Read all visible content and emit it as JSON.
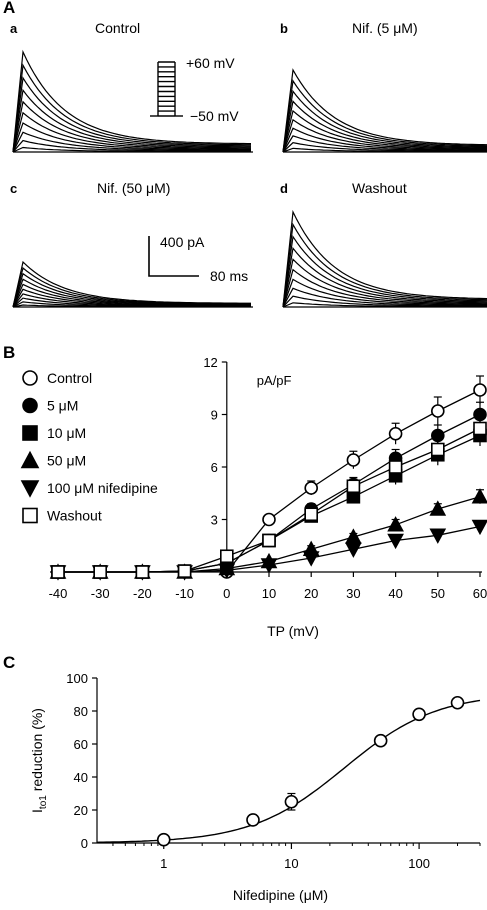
{
  "panel_a": {
    "label": "A",
    "traces": [
      {
        "sub": "a",
        "title": "Control",
        "peak": 1.0
      },
      {
        "sub": "b",
        "title": "Nif. (5 μM)",
        "peak": 0.82
      },
      {
        "sub": "c",
        "title": "Nif. (50 μM)",
        "peak": 0.45
      },
      {
        "sub": "d",
        "title": "Washout",
        "peak": 0.95
      }
    ],
    "protocol": {
      "top": "+60 mV",
      "bottom": "−50 mV"
    },
    "scale_bar": {
      "current": "400 pA",
      "time": "80 ms"
    }
  },
  "panel_b": {
    "label": "B"
  },
  "panel_c": {
    "label": "C"
  },
  "chart_data": [
    {
      "type": "line",
      "panel": "B",
      "x": [
        -40,
        -30,
        -20,
        -10,
        0,
        10,
        20,
        30,
        40,
        50,
        60
      ],
      "xlabel": "TP (mV)",
      "ylabel": "pA/pF",
      "xlim": [
        -40,
        60
      ],
      "ylim": [
        0,
        12
      ],
      "xticks": [
        "-40",
        "-30",
        "-20",
        "-10",
        "0",
        "10",
        "20",
        "30",
        "40",
        "50",
        "60"
      ],
      "yticks": [
        "3",
        "6",
        "9",
        "12"
      ],
      "legend_position": "top-left",
      "series": [
        {
          "name": "Control",
          "marker": "circle-open",
          "values": [
            0,
            0,
            0,
            0.05,
            0,
            3.0,
            4.8,
            6.4,
            7.9,
            9.2,
            10.4
          ],
          "errors": [
            0,
            0,
            0,
            0,
            0,
            0.2,
            0.4,
            0.5,
            0.6,
            0.8,
            0.8
          ]
        },
        {
          "name": "5 μM",
          "marker": "circle-filled",
          "values": [
            0,
            0,
            0,
            0.05,
            0.5,
            1.8,
            3.6,
            5.0,
            6.5,
            7.8,
            9.0
          ],
          "errors": [
            0,
            0,
            0,
            0,
            0,
            0.2,
            0.3,
            0.4,
            0.5,
            0.6,
            0.7
          ]
        },
        {
          "name": "10 μM",
          "marker": "square-filled",
          "values": [
            0,
            0,
            0,
            0.05,
            0.5,
            1.8,
            3.2,
            4.3,
            5.5,
            6.7,
            7.8
          ],
          "errors": [
            0,
            0,
            0,
            0,
            0,
            0.2,
            0.3,
            0.3,
            0.5,
            0.6,
            0.6
          ]
        },
        {
          "name": "50 μM",
          "marker": "triangle-up-filled",
          "values": [
            0,
            0,
            0,
            0,
            0.2,
            0.6,
            1.3,
            2.0,
            2.7,
            3.6,
            4.3
          ],
          "errors": [
            0,
            0,
            0,
            0,
            0,
            0.1,
            0.2,
            0.2,
            0.3,
            0.3,
            0.4
          ]
        },
        {
          "name": "100 μM nifedipine",
          "marker": "triangle-down-filled",
          "values": [
            0,
            0,
            0,
            0,
            0.1,
            0.4,
            0.8,
            1.3,
            1.8,
            2.1,
            2.6
          ],
          "errors": [
            0,
            0,
            0,
            0,
            0,
            0.1,
            0.1,
            0.2,
            0.2,
            0.2,
            0.3
          ]
        },
        {
          "name": "Washout",
          "marker": "square-open",
          "values": [
            0,
            0,
            0,
            0.05,
            0.9,
            1.8,
            3.3,
            4.9,
            6.0,
            7.0,
            8.2
          ],
          "errors": [
            0,
            0,
            0,
            0,
            0,
            0.2,
            0.3,
            0.4,
            0.5,
            0.6,
            0.7
          ]
        }
      ]
    },
    {
      "type": "scatter",
      "panel": "C",
      "xscale": "log",
      "x": [
        1,
        5,
        10,
        50,
        100,
        200
      ],
      "xlabel": "Nifedipine (μM)",
      "ylabel_main": "I",
      "ylabel_sub": "to1",
      "ylabel_rest": " reduction (%)",
      "xlim": [
        0.3,
        300
      ],
      "ylim": [
        0,
        100
      ],
      "xticks": [
        "1",
        "10",
        "100"
      ],
      "yticks": [
        "0",
        "20",
        "40",
        "60",
        "80",
        "100"
      ],
      "series": [
        {
          "name": "",
          "marker": "circle-open",
          "values": [
            2,
            14,
            25,
            62,
            78,
            85
          ],
          "errors": [
            1,
            3,
            5,
            2,
            2,
            2
          ]
        }
      ],
      "fit": {
        "ic50": 26,
        "hill": 1.2,
        "max": 91
      }
    }
  ]
}
